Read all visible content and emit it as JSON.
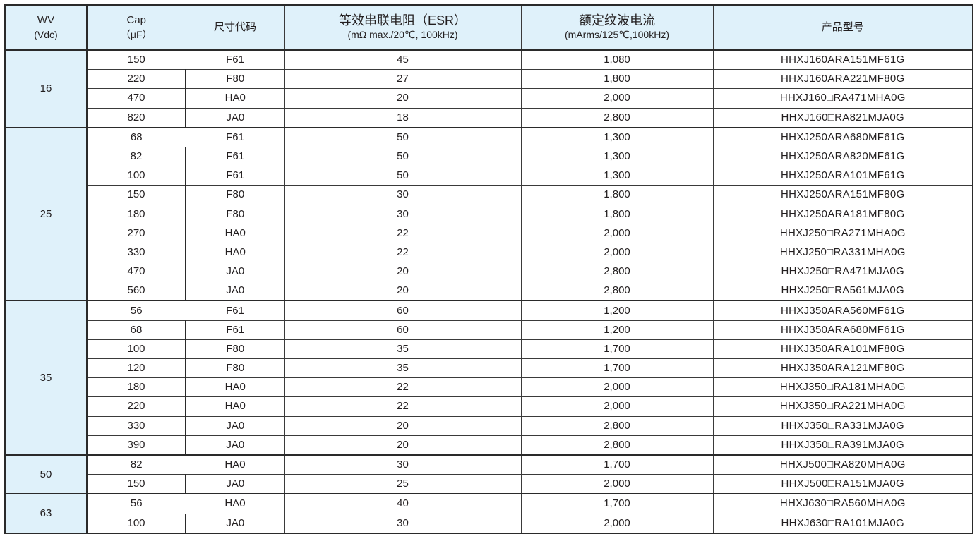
{
  "header": {
    "wv": {
      "line1": "WV",
      "line2": "(Vdc)"
    },
    "cap": {
      "line1": "Cap",
      "line2": "（μF）"
    },
    "size_code": "尺寸代码",
    "esr": {
      "line1": "等效串联电阻（ESR）",
      "line2": "(mΩ max./20℃, 100kHz)"
    },
    "ripple": {
      "line1": "额定纹波电流",
      "line2": "(mArms/125℃,100kHz)"
    },
    "part_number": "产品型号"
  },
  "groups": [
    {
      "wv": "16",
      "rows": [
        [
          "150",
          "F61",
          "45",
          "1,080",
          "HHXJ160ARA151MF61G"
        ],
        [
          "220",
          "F80",
          "27",
          "1,800",
          "HHXJ160ARA221MF80G"
        ],
        [
          "470",
          "HA0",
          "20",
          "2,000",
          "HHXJ160□RA471MHA0G"
        ],
        [
          "820",
          "JA0",
          "18",
          "2,800",
          "HHXJ160□RA821MJA0G"
        ]
      ]
    },
    {
      "wv": "25",
      "rows": [
        [
          "68",
          "F61",
          "50",
          "1,300",
          "HHXJ250ARA680MF61G"
        ],
        [
          "82",
          "F61",
          "50",
          "1,300",
          "HHXJ250ARA820MF61G"
        ],
        [
          "100",
          "F61",
          "50",
          "1,300",
          "HHXJ250ARA101MF61G"
        ],
        [
          "150",
          "F80",
          "30",
          "1,800",
          "HHXJ250ARA151MF80G"
        ],
        [
          "180",
          "F80",
          "30",
          "1,800",
          "HHXJ250ARA181MF80G"
        ],
        [
          "270",
          "HA0",
          "22",
          "2,000",
          "HHXJ250□RA271MHA0G"
        ],
        [
          "330",
          "HA0",
          "22",
          "2,000",
          "HHXJ250□RA331MHA0G"
        ],
        [
          "470",
          "JA0",
          "20",
          "2,800",
          "HHXJ250□RA471MJA0G"
        ],
        [
          "560",
          "JA0",
          "20",
          "2,800",
          "HHXJ250□RA561MJA0G"
        ]
      ]
    },
    {
      "wv": "35",
      "rows": [
        [
          "56",
          "F61",
          "60",
          "1,200",
          "HHXJ350ARA560MF61G"
        ],
        [
          "68",
          "F61",
          "60",
          "1,200",
          "HHXJ350ARA680MF61G"
        ],
        [
          "100",
          "F80",
          "35",
          "1,700",
          "HHXJ350ARA101MF80G"
        ],
        [
          "120",
          "F80",
          "35",
          "1,700",
          "HHXJ350ARA121MF80G"
        ],
        [
          "180",
          "HA0",
          "22",
          "2,000",
          "HHXJ350□RA181MHA0G"
        ],
        [
          "220",
          "HA0",
          "22",
          "2,000",
          "HHXJ350□RA221MHA0G"
        ],
        [
          "330",
          "JA0",
          "20",
          "2,800",
          "HHXJ350□RA331MJA0G"
        ],
        [
          "390",
          "JA0",
          "20",
          "2,800",
          "HHXJ350□RA391MJA0G"
        ]
      ]
    },
    {
      "wv": "50",
      "rows": [
        [
          "82",
          "HA0",
          "30",
          "1,700",
          "HHXJ500□RA820MHA0G"
        ],
        [
          "150",
          "JA0",
          "25",
          "2,000",
          "HHXJ500□RA151MJA0G"
        ]
      ]
    },
    {
      "wv": "63",
      "rows": [
        [
          "56",
          "HA0",
          "40",
          "1,700",
          "HHXJ630□RA560MHA0G"
        ],
        [
          "100",
          "JA0",
          "30",
          "2,000",
          "HHXJ630□RA101MJA0G"
        ]
      ]
    }
  ],
  "colors": {
    "header_bg": "#dff1fa",
    "border": "#2a2a2a"
  }
}
